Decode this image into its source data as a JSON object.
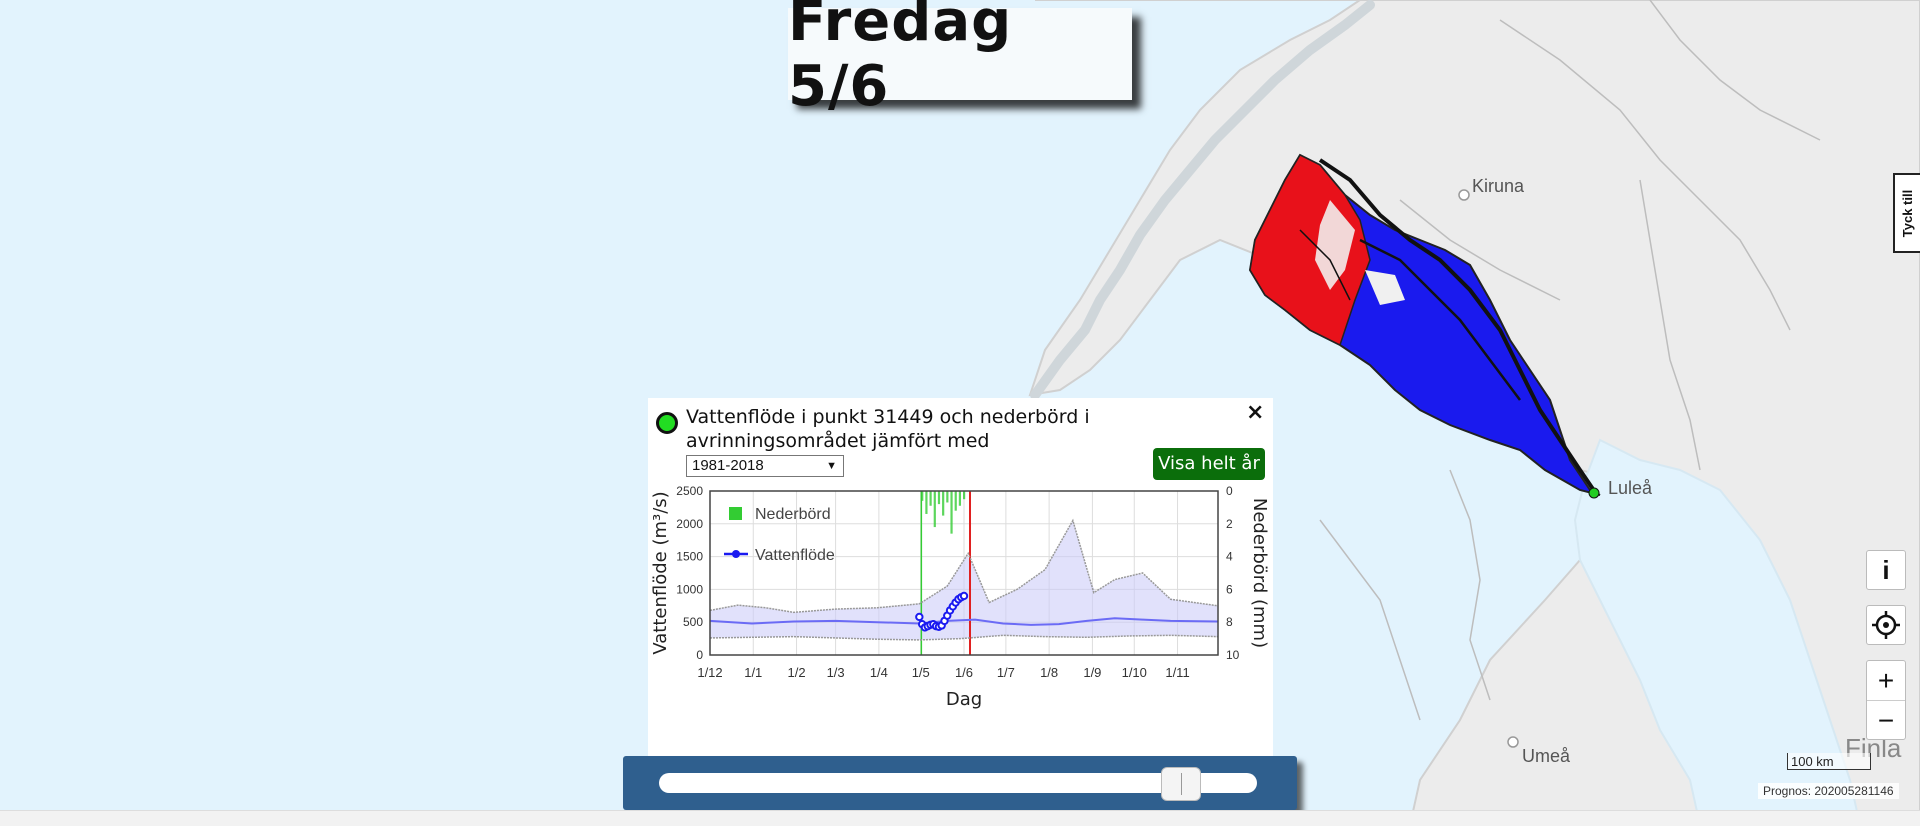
{
  "header": {
    "date_label": "Fredag 5/6"
  },
  "feedback": {
    "label": "Tyck till"
  },
  "map": {
    "places": [
      {
        "name": "Kiruna"
      },
      {
        "name": "Luleå"
      },
      {
        "name": "Umeå"
      },
      {
        "name": "Finla"
      }
    ],
    "scale_label": "100 km",
    "forecast_label": "Prognos: 202005281146",
    "controls": {
      "info": "i",
      "zoom_in": "+",
      "zoom_out": "−"
    },
    "colors": {
      "basin_high": "#e8111a",
      "basin_low": "#1a1aee",
      "outlet": "#22cc22"
    }
  },
  "popup": {
    "title": "Vattenflöde i punkt 31449 och nederbörd i avrinningsområdet jämfört med",
    "period_select": "1981-2018",
    "full_year_button": "Visa helt år",
    "close_label": "×"
  },
  "slider": {
    "position_fraction": 0.9
  },
  "chart_data": {
    "type": "line",
    "xlabel": "Dag",
    "ylabel": "Vattenflöde (m³/s)",
    "y2label": "Nederbörd (mm)",
    "ylim": [
      0,
      2500
    ],
    "y2lim": [
      10,
      0
    ],
    "yticks": [
      "0",
      "500",
      "1000",
      "1500",
      "2000",
      "2500"
    ],
    "y2ticks": [
      "0",
      "2",
      "4",
      "6",
      "8",
      "10"
    ],
    "xticks": [
      "1/12",
      "1/1",
      "1/2",
      "1/3",
      "1/4",
      "1/5",
      "1/6",
      "1/7",
      "1/8",
      "1/9",
      "1/10",
      "1/11"
    ],
    "today_marker": "1/6",
    "legend": [
      {
        "name": "Nederbörd",
        "color": "#33cc33"
      },
      {
        "name": "Vattenflöde",
        "color": "#1a1af0"
      }
    ],
    "series": [
      {
        "name": "Vattenflöde",
        "x_day": [
          150,
          152,
          154,
          156,
          158,
          160,
          162,
          164,
          166,
          168,
          170,
          172,
          174,
          176,
          178,
          180,
          182
        ],
        "values": [
          580,
          470,
          420,
          440,
          460,
          470,
          440,
          430,
          450,
          520,
          600,
          680,
          740,
          800,
          850,
          880,
          900
        ]
      },
      {
        "name": "Median",
        "x_day": [
          0,
          30,
          60,
          90,
          120,
          150,
          170,
          190,
          210,
          230,
          250,
          270,
          290,
          310,
          330,
          364
        ],
        "values": [
          520,
          480,
          510,
          520,
          500,
          480,
          520,
          540,
          480,
          460,
          470,
          520,
          560,
          540,
          520,
          510
        ]
      },
      {
        "name": "Max",
        "x_day": [
          0,
          20,
          40,
          60,
          90,
          120,
          150,
          170,
          185,
          200,
          220,
          240,
          260,
          275,
          290,
          310,
          330,
          364
        ],
        "values": [
          680,
          760,
          720,
          650,
          700,
          720,
          780,
          1050,
          1550,
          800,
          1000,
          1300,
          2050,
          950,
          1150,
          1250,
          850,
          750
        ]
      },
      {
        "name": "Min",
        "x_day": [
          0,
          30,
          60,
          90,
          120,
          150,
          180,
          210,
          240,
          270,
          300,
          330,
          364
        ],
        "values": [
          260,
          270,
          280,
          260,
          240,
          230,
          250,
          300,
          280,
          270,
          290,
          300,
          280
        ]
      }
    ],
    "precipitation": {
      "x_day": [
        152,
        155,
        158,
        161,
        164,
        167,
        170,
        173,
        176,
        179,
        182
      ],
      "values_mm": [
        0.6,
        1.4,
        0.9,
        2.2,
        0.8,
        1.5,
        0.7,
        2.6,
        1.2,
        0.9,
        0.5
      ]
    }
  }
}
